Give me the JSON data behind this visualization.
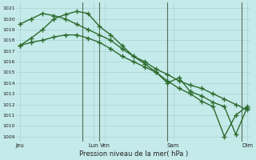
{
  "xlabel": "Pression niveau de la mer( hPa )",
  "bg_color": "#c5eaea",
  "grid_color": "#a8d4d4",
  "line_color": "#2d6b2d",
  "vline_color": "#557055",
  "ylim": [
    1008.5,
    1021.5
  ],
  "yticks": [
    1009,
    1010,
    1011,
    1012,
    1013,
    1014,
    1015,
    1016,
    1017,
    1018,
    1019,
    1020,
    1021
  ],
  "xlim": [
    -0.3,
    20.3
  ],
  "xtick_labels": [
    "Jeu",
    "Lun",
    "Ven",
    "Sam",
    "Dim"
  ],
  "xtick_positions": [
    0,
    6.5,
    7.5,
    13.5,
    20
  ],
  "vline_positions": [
    5.5,
    7.0,
    13.0,
    19.5
  ],
  "lines": [
    {
      "x": [
        0,
        1,
        2,
        3,
        4,
        5,
        6,
        7,
        8,
        9,
        10,
        11,
        12,
        13,
        14,
        15,
        16,
        17,
        18,
        19,
        20
      ],
      "y": [
        1019.5,
        1020.0,
        1020.5,
        1020.3,
        1020.0,
        1019.5,
        1019.0,
        1018.5,
        1018.0,
        1017.2,
        1016.5,
        1016.0,
        1015.3,
        1014.8,
        1014.2,
        1013.8,
        1013.5,
        1013.0,
        1012.5,
        1012.0,
        1011.5
      ],
      "marker": "+",
      "markersize": 4,
      "linewidth": 1.0
    },
    {
      "x": [
        0,
        1,
        2,
        3,
        4,
        5,
        6,
        7,
        8,
        9,
        10,
        11,
        12,
        13,
        14,
        15,
        16,
        17,
        18,
        19,
        20
      ],
      "y": [
        1017.5,
        1018.2,
        1019.0,
        1020.0,
        1020.4,
        1020.7,
        1020.5,
        1019.3,
        1018.5,
        1017.5,
        1016.5,
        1015.8,
        1015.0,
        1014.0,
        1014.5,
        1013.2,
        1012.8,
        1012.2,
        1011.8,
        1009.2,
        1011.7
      ],
      "marker": "+",
      "markersize": 4,
      "linewidth": 1.0
    },
    {
      "x": [
        0,
        1,
        2,
        3,
        4,
        5,
        6,
        7,
        8,
        9,
        10,
        11,
        12,
        13,
        14,
        15,
        16,
        17,
        18,
        19,
        20
      ],
      "y": [
        1017.5,
        1017.8,
        1018.0,
        1018.3,
        1018.5,
        1018.5,
        1018.2,
        1017.8,
        1017.2,
        1016.5,
        1016.0,
        1015.5,
        1015.0,
        1014.2,
        1013.5,
        1013.0,
        1012.3,
        1011.8,
        1009.0,
        1011.0,
        1011.8
      ],
      "marker": "+",
      "markersize": 4,
      "linewidth": 1.0
    }
  ]
}
